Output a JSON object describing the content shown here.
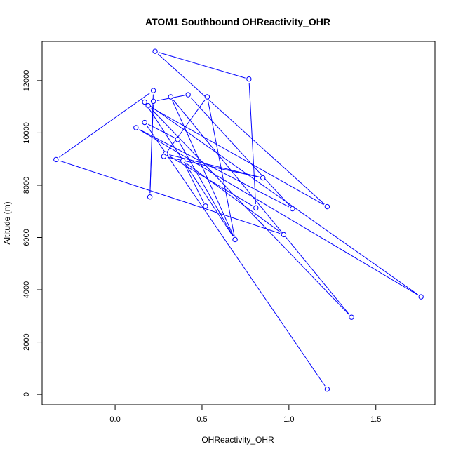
{
  "chart_data": {
    "type": "line",
    "title": "ATOM1 Southbound OHReactivity_OHR",
    "xlabel": "OHReactivity_OHR",
    "ylabel": "Altitude (m)",
    "xlim": [
      -0.42,
      1.84
    ],
    "ylim": [
      -400,
      13500
    ],
    "xticks": [
      0.0,
      0.5,
      1.0,
      1.5
    ],
    "xtick_labels": [
      "0.0",
      "0.5",
      "1.0",
      "1.5"
    ],
    "yticks": [
      0,
      2000,
      4000,
      6000,
      8000,
      10000,
      12000
    ],
    "ytick_labels": [
      "0",
      "2000",
      "4000",
      "6000",
      "8000",
      "10000",
      "12000"
    ],
    "grid": false,
    "colors": {
      "series": "#0000ff",
      "axes": "#000000"
    },
    "series": [
      {
        "points": [
          {
            "x": 1.22,
            "y": 200
          },
          {
            "x": 0.17,
            "y": 10400
          },
          {
            "x": 0.36,
            "y": 9750
          },
          {
            "x": 0.69,
            "y": 5920
          },
          {
            "x": 0.32,
            "y": 11380
          },
          {
            "x": 1.36,
            "y": 2950
          },
          {
            "x": 0.19,
            "y": 11040
          },
          {
            "x": 1.22,
            "y": 7180
          },
          {
            "x": 0.23,
            "y": 13120
          },
          {
            "x": 0.77,
            "y": 12060
          },
          {
            "x": 0.81,
            "y": 7130
          },
          {
            "x": 0.29,
            "y": 9200
          },
          {
            "x": 0.85,
            "y": 8280
          },
          {
            "x": 0.28,
            "y": 9100
          },
          {
            "x": 0.53,
            "y": 11380
          },
          {
            "x": 0.69,
            "y": 5920
          },
          {
            "x": 0.17,
            "y": 11180
          },
          {
            "x": 1.76,
            "y": 3730
          },
          {
            "x": 0.12,
            "y": 10200
          },
          {
            "x": 1.02,
            "y": 7100
          },
          {
            "x": 0.42,
            "y": 11460
          },
          {
            "x": 0.22,
            "y": 11210
          },
          {
            "x": 0.2,
            "y": 7550
          },
          {
            "x": 0.22,
            "y": 11620
          },
          {
            "x": -0.34,
            "y": 8980
          },
          {
            "x": 0.97,
            "y": 6110
          },
          {
            "x": 0.39,
            "y": 8930
          },
          {
            "x": 0.52,
            "y": 7200
          }
        ]
      }
    ]
  }
}
